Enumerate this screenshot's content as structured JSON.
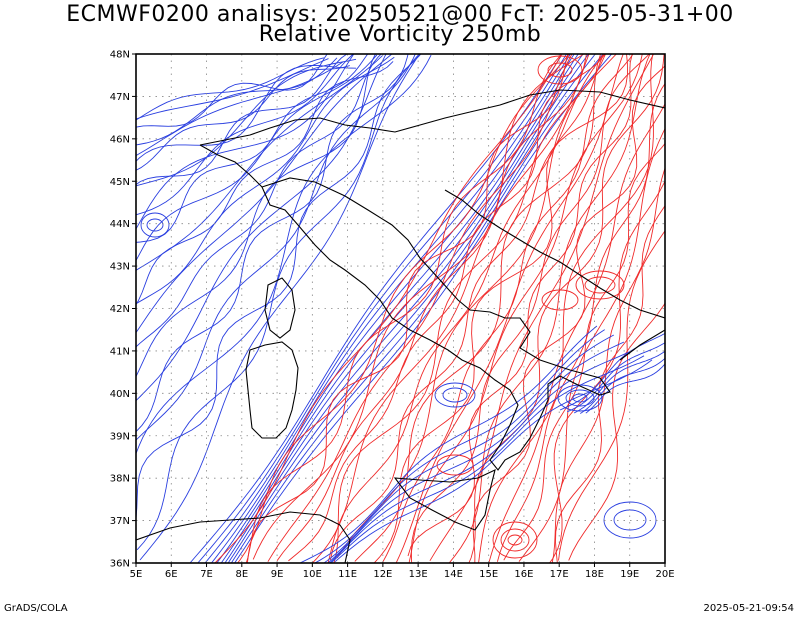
{
  "header": {
    "title_line1": "ECMWF0200 analisys: 20250521@00 FcT: 2025-05-31+00",
    "title_line2": "Relative Vorticity 250mb"
  },
  "footer": {
    "left": "GrADS/COLA",
    "right": "2025-05-21-09:54"
  },
  "map": {
    "lon_range": [
      5,
      20
    ],
    "lat_range": [
      36,
      48
    ],
    "lon_ticks": [
      "5E",
      "6E",
      "7E",
      "8E",
      "9E",
      "10E",
      "11E",
      "12E",
      "13E",
      "14E",
      "15E",
      "16E",
      "17E",
      "18E",
      "19E",
      "20E"
    ],
    "lat_ticks": [
      "36N",
      "37N",
      "38N",
      "39N",
      "40N",
      "41N",
      "42N",
      "43N",
      "44N",
      "45N",
      "46N",
      "47N",
      "48N"
    ],
    "grid": "dotted",
    "colors": {
      "negative_contour": "#2a3fe0",
      "positive_contour": "#f02a2a",
      "coastline": "#000000",
      "frame": "#000000"
    }
  }
}
